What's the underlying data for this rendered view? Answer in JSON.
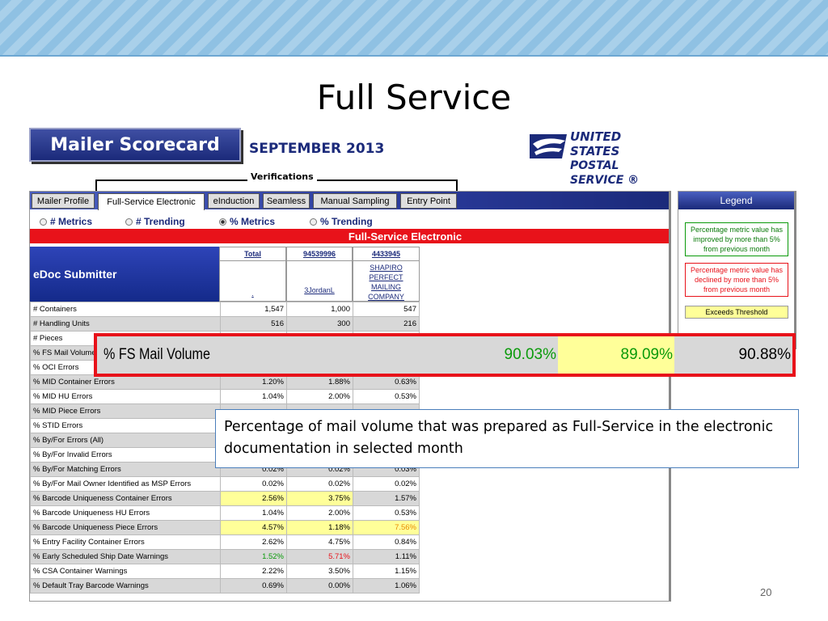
{
  "slide": {
    "title": "Full Service",
    "page_number": "20"
  },
  "scorecard": {
    "title": "Mailer Scorecard",
    "month": "SEPTEMBER 2013"
  },
  "logo": {
    "line1": "UNITED STATES",
    "line2": "POSTAL SERVICE ®"
  },
  "verifications_label": "Verifications",
  "tabs": [
    {
      "label": "Mailer Profile",
      "active": false
    },
    {
      "label": "Full-Service Electronic",
      "active": true
    },
    {
      "label": "eInduction",
      "active": false
    },
    {
      "label": "Seamless",
      "active": false
    },
    {
      "label": "Manual Sampling",
      "active": false
    },
    {
      "label": "Entry Point",
      "active": false
    }
  ],
  "radios": [
    {
      "label": "# Metrics",
      "checked": false
    },
    {
      "label": "# Trending",
      "checked": false
    },
    {
      "label": "% Metrics",
      "checked": true
    },
    {
      "label": "% Trending",
      "checked": false
    }
  ],
  "section_title": "Full-Service Electronic",
  "row_header": "eDoc Submitter",
  "columns": [
    {
      "top": "Total",
      "bottom": "."
    },
    {
      "top": "94539996",
      "bottom": "3JordanL"
    },
    {
      "top": "4433945",
      "bottom": "SHAPIRO PERFECT MAILING COMPANY"
    }
  ],
  "rows": [
    {
      "metric": "# Containers",
      "values": [
        "1,547",
        "1,000",
        "547"
      ]
    },
    {
      "metric": "# Handling Units",
      "values": [
        "516",
        "300",
        "216"
      ]
    },
    {
      "metric": "# Pieces",
      "values": [
        "",
        "",
        ""
      ]
    },
    {
      "metric": "% FS Mail Volume",
      "values": [
        "",
        "",
        ""
      ]
    },
    {
      "metric": "% OCI Errors",
      "values": [
        "",
        "",
        ""
      ]
    },
    {
      "metric": "% MID Container Errors",
      "values": [
        "1.20%",
        "1.88%",
        "0.63%"
      ]
    },
    {
      "metric": "% MID HU Errors",
      "values": [
        "1.04%",
        "2.00%",
        "0.53%"
      ]
    },
    {
      "metric": "% MID Piece Errors",
      "values": [
        "",
        "",
        ""
      ]
    },
    {
      "metric": "% STID Errors",
      "values": [
        "",
        "",
        ""
      ]
    },
    {
      "metric": "% By/For Errors (All)",
      "values": [
        "",
        "",
        ""
      ]
    },
    {
      "metric": "% By/For Invalid Errors",
      "values": [
        "",
        "",
        ""
      ]
    },
    {
      "metric": "% By/For Matching Errors",
      "values": [
        "0.02%",
        "0.02%",
        "0.03%"
      ]
    },
    {
      "metric": "% By/For Mail Owner Identified as MSP Errors",
      "values": [
        "0.02%",
        "0.02%",
        "0.02%"
      ]
    },
    {
      "metric": "% Barcode Uniqueness Container Errors",
      "values": [
        "2.56%",
        "3.75%",
        "1.57%"
      ]
    },
    {
      "metric": "% Barcode Uniqueness HU Errors",
      "values": [
        "1.04%",
        "2.00%",
        "0.53%"
      ]
    },
    {
      "metric": "% Barcode Uniqueness Piece Errors",
      "values": [
        "4.57%",
        "1.18%",
        "7.56%"
      ]
    },
    {
      "metric": "% Entry Facility Container Errors",
      "values": [
        "2.62%",
        "4.75%",
        "0.84%"
      ]
    },
    {
      "metric": "% Early Scheduled Ship Date Warnings",
      "values": [
        "1.52%",
        "5.71%",
        "1.11%"
      ]
    },
    {
      "metric": "% CSA Container Warnings",
      "values": [
        "2.22%",
        "3.50%",
        "1.15%"
      ]
    },
    {
      "metric": "% Default Tray Barcode Warnings",
      "values": [
        "0.69%",
        "0.00%",
        "1.06%"
      ]
    }
  ],
  "legend": {
    "title": "Legend",
    "improved": "Percentage metric value has improved by more than 5% from previous month",
    "declined": "Percentage metric value has declined by more than 5% from previous month",
    "threshold": "Exceeds Threshold",
    "colors": {
      "improved": "#0a9a0a",
      "declined": "#e8121a",
      "threshold": "#ffff99"
    }
  },
  "zoom": {
    "label": "% FS Mail Volume",
    "values": [
      "90.03%",
      "89.09%",
      "90.88%"
    ]
  },
  "callout": "Percentage of mail volume that was prepared as Full-Service in the electronic documentation in selected month"
}
